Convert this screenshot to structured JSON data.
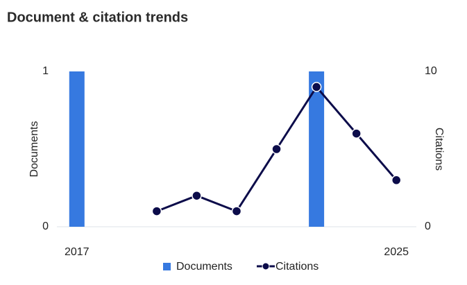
{
  "chart_data": {
    "type": "combo",
    "title": "Document & citation trends",
    "categories": [
      "2017",
      null,
      null,
      null,
      null,
      null,
      null,
      null,
      "2025"
    ],
    "series": [
      {
        "name": "Documents",
        "type": "bar",
        "color": "#3679e0",
        "values": [
          1,
          0,
          0,
          0,
          0,
          0,
          1,
          0,
          0
        ]
      },
      {
        "name": "Citations",
        "type": "line",
        "axis": "y2",
        "color": "#0c0c4a",
        "values": [
          null,
          null,
          1,
          2,
          1,
          5,
          9,
          6,
          3
        ]
      }
    ],
    "y_label": "Documents",
    "y2_label": "Citations",
    "ylim": [
      0,
      1
    ],
    "yticks": [
      0,
      1
    ],
    "y2lim": [
      0,
      10
    ],
    "y2ticks": [
      0,
      10
    ],
    "legend": "bottom"
  }
}
